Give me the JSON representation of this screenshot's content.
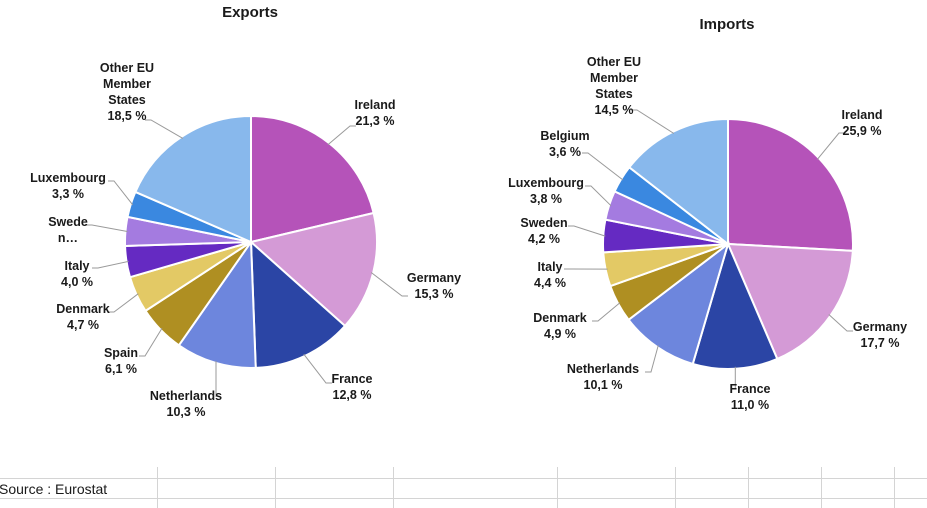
{
  "chart_data": [
    {
      "type": "pie",
      "title": "Exports",
      "start_angle_deg": 0,
      "direction": "clockwise",
      "slices": [
        {
          "label": "Ireland",
          "value": 21.3,
          "display": "21,3 %",
          "color": "#B553B9"
        },
        {
          "label": "Germany",
          "value": 15.3,
          "display": "15,3 %",
          "color": "#D49AD6"
        },
        {
          "label": "France",
          "value": 12.8,
          "display": "12,8 %",
          "color": "#2B45A5"
        },
        {
          "label": "Netherlands",
          "value": 10.3,
          "display": "10,3 %",
          "color": "#6D86DD"
        },
        {
          "label": "Spain",
          "value": 6.1,
          "display": "6,1 %",
          "color": "#AF8F22"
        },
        {
          "label": "Denmark",
          "value": 4.7,
          "display": "4,7 %",
          "color": "#E3C965"
        },
        {
          "label": "Italy",
          "value": 4.0,
          "display": "4,0 %",
          "color": "#652AC2"
        },
        {
          "label": "Swede n…",
          "value": 3.7,
          "display": "",
          "color": "#A47BE0"
        },
        {
          "label": "Luxembourg",
          "value": 3.3,
          "display": "3,3 %",
          "color": "#3A88E0"
        },
        {
          "label": "Other EU Member States",
          "value": 18.5,
          "display": "18,5 %",
          "color": "#88B8EC"
        }
      ]
    },
    {
      "type": "pie",
      "title": "Imports",
      "start_angle_deg": 0,
      "direction": "clockwise",
      "slices": [
        {
          "label": "Ireland",
          "value": 25.9,
          "display": "25,9 %",
          "color": "#B553B9"
        },
        {
          "label": "Germany",
          "value": 17.7,
          "display": "17,7 %",
          "color": "#D49AD6"
        },
        {
          "label": "France",
          "value": 11.0,
          "display": "11,0 %",
          "color": "#2B45A5"
        },
        {
          "label": "Netherlands",
          "value": 10.1,
          "display": "10,1 %",
          "color": "#6D86DD"
        },
        {
          "label": "Denmark",
          "value": 4.9,
          "display": "4,9 %",
          "color": "#AF8F22"
        },
        {
          "label": "Italy",
          "value": 4.4,
          "display": "4,4 %",
          "color": "#E3C965"
        },
        {
          "label": "Sweden",
          "value": 4.2,
          "display": "4,2 %",
          "color": "#652AC2"
        },
        {
          "label": "Luxembourg",
          "value": 3.8,
          "display": "3,8 %",
          "color": "#A47BE0"
        },
        {
          "label": "Belgium",
          "value": 3.6,
          "display": "3,6 %",
          "color": "#3A88E0"
        },
        {
          "label": "Other EU Member States",
          "value": 14.5,
          "display": "14,5 %",
          "color": "#88B8EC"
        }
      ]
    }
  ],
  "footer": {
    "source": "Source : Eurostat"
  }
}
